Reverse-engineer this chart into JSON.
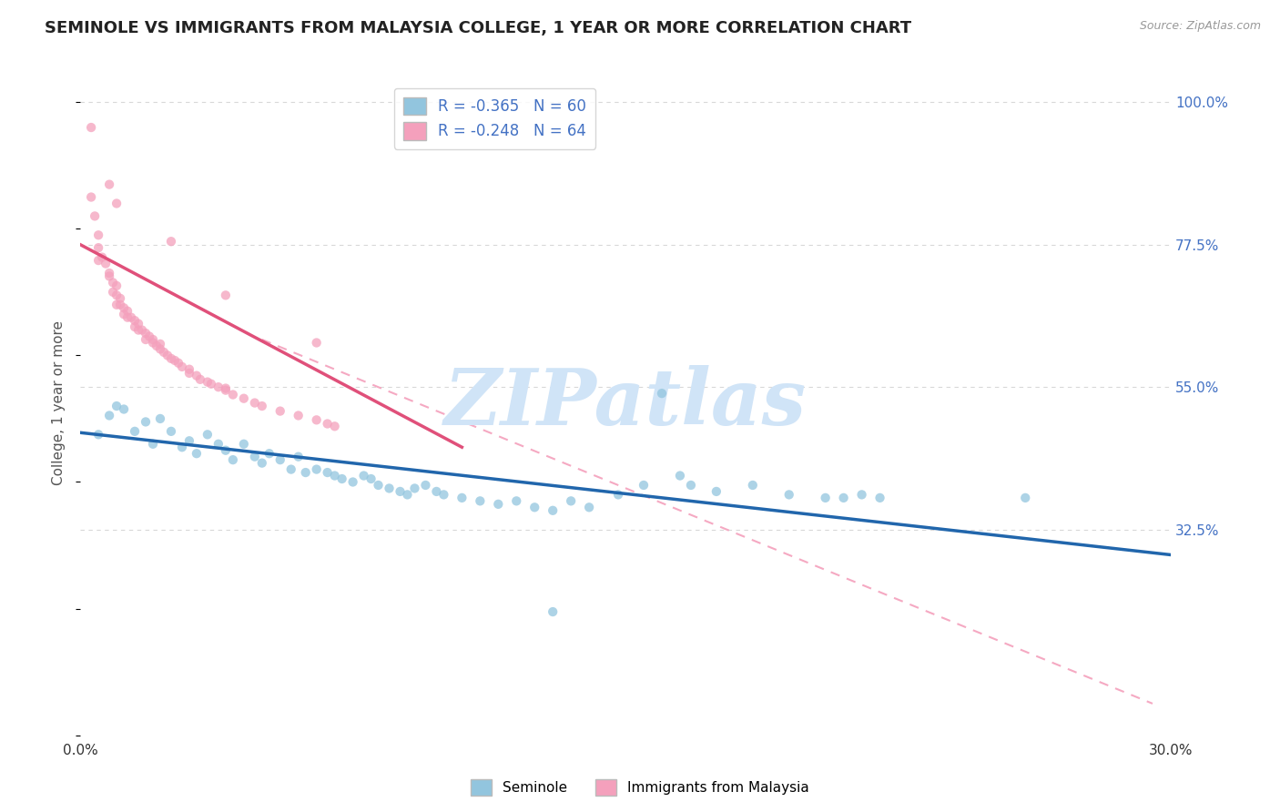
{
  "title": "SEMINOLE VS IMMIGRANTS FROM MALAYSIA COLLEGE, 1 YEAR OR MORE CORRELATION CHART",
  "source": "Source: ZipAtlas.com",
  "ylabel": "College, 1 year or more",
  "xlim": [
    0.0,
    0.3
  ],
  "ylim": [
    0.0,
    1.05
  ],
  "ytick_values": [
    0.325,
    0.55,
    0.775,
    1.0
  ],
  "ytick_labels": [
    "32.5%",
    "55.0%",
    "77.5%",
    "100.0%"
  ],
  "xtick_values": [
    0.0,
    0.05,
    0.1,
    0.15,
    0.2,
    0.25,
    0.3
  ],
  "xtick_labels": [
    "0.0%",
    "",
    "",
    "",
    "",
    "",
    "30.0%"
  ],
  "title_fontsize": 13,
  "label_fontsize": 11,
  "tick_fontsize": 11,
  "background_color": "#ffffff",
  "grid_color": "#d8d8d8",
  "watermark_color": "#d0e4f7",
  "blue_color": "#92c5de",
  "pink_color": "#f4a0bc",
  "blue_line_color": "#2166ac",
  "pink_line_color": "#e0507a",
  "dashed_line_color": "#f4a0bc",
  "legend_R1": "R = -0.365",
  "legend_N1": "N = 60",
  "legend_R2": "R = -0.248",
  "legend_N2": "N = 64",
  "blue_scatter": [
    [
      0.005,
      0.475
    ],
    [
      0.008,
      0.505
    ],
    [
      0.01,
      0.52
    ],
    [
      0.012,
      0.515
    ],
    [
      0.015,
      0.48
    ],
    [
      0.018,
      0.495
    ],
    [
      0.02,
      0.46
    ],
    [
      0.022,
      0.5
    ],
    [
      0.025,
      0.48
    ],
    [
      0.028,
      0.455
    ],
    [
      0.03,
      0.465
    ],
    [
      0.032,
      0.445
    ],
    [
      0.035,
      0.475
    ],
    [
      0.038,
      0.46
    ],
    [
      0.04,
      0.45
    ],
    [
      0.042,
      0.435
    ],
    [
      0.045,
      0.46
    ],
    [
      0.048,
      0.44
    ],
    [
      0.05,
      0.43
    ],
    [
      0.052,
      0.445
    ],
    [
      0.055,
      0.435
    ],
    [
      0.058,
      0.42
    ],
    [
      0.06,
      0.44
    ],
    [
      0.062,
      0.415
    ],
    [
      0.065,
      0.42
    ],
    [
      0.068,
      0.415
    ],
    [
      0.07,
      0.41
    ],
    [
      0.072,
      0.405
    ],
    [
      0.075,
      0.4
    ],
    [
      0.078,
      0.41
    ],
    [
      0.08,
      0.405
    ],
    [
      0.082,
      0.395
    ],
    [
      0.085,
      0.39
    ],
    [
      0.088,
      0.385
    ],
    [
      0.09,
      0.38
    ],
    [
      0.092,
      0.39
    ],
    [
      0.095,
      0.395
    ],
    [
      0.098,
      0.385
    ],
    [
      0.1,
      0.38
    ],
    [
      0.105,
      0.375
    ],
    [
      0.11,
      0.37
    ],
    [
      0.115,
      0.365
    ],
    [
      0.12,
      0.37
    ],
    [
      0.125,
      0.36
    ],
    [
      0.13,
      0.355
    ],
    [
      0.135,
      0.37
    ],
    [
      0.14,
      0.36
    ],
    [
      0.148,
      0.38
    ],
    [
      0.155,
      0.395
    ],
    [
      0.16,
      0.54
    ],
    [
      0.165,
      0.41
    ],
    [
      0.168,
      0.395
    ],
    [
      0.175,
      0.385
    ],
    [
      0.185,
      0.395
    ],
    [
      0.195,
      0.38
    ],
    [
      0.205,
      0.375
    ],
    [
      0.21,
      0.375
    ],
    [
      0.215,
      0.38
    ],
    [
      0.22,
      0.375
    ],
    [
      0.26,
      0.375
    ]
  ],
  "blue_outlier": [
    0.13,
    0.195
  ],
  "pink_scatter": [
    [
      0.003,
      0.96
    ],
    [
      0.003,
      0.85
    ],
    [
      0.004,
      0.82
    ],
    [
      0.005,
      0.79
    ],
    [
      0.005,
      0.77
    ],
    [
      0.005,
      0.75
    ],
    [
      0.006,
      0.755
    ],
    [
      0.007,
      0.745
    ],
    [
      0.008,
      0.73
    ],
    [
      0.008,
      0.725
    ],
    [
      0.009,
      0.715
    ],
    [
      0.009,
      0.7
    ],
    [
      0.01,
      0.71
    ],
    [
      0.01,
      0.695
    ],
    [
      0.01,
      0.68
    ],
    [
      0.011,
      0.69
    ],
    [
      0.011,
      0.68
    ],
    [
      0.012,
      0.675
    ],
    [
      0.012,
      0.665
    ],
    [
      0.013,
      0.67
    ],
    [
      0.013,
      0.66
    ],
    [
      0.014,
      0.66
    ],
    [
      0.015,
      0.655
    ],
    [
      0.015,
      0.645
    ],
    [
      0.016,
      0.65
    ],
    [
      0.016,
      0.64
    ],
    [
      0.017,
      0.64
    ],
    [
      0.018,
      0.635
    ],
    [
      0.018,
      0.625
    ],
    [
      0.019,
      0.63
    ],
    [
      0.02,
      0.62
    ],
    [
      0.02,
      0.625
    ],
    [
      0.021,
      0.615
    ],
    [
      0.022,
      0.61
    ],
    [
      0.022,
      0.618
    ],
    [
      0.023,
      0.605
    ],
    [
      0.024,
      0.6
    ],
    [
      0.025,
      0.595
    ],
    [
      0.026,
      0.592
    ],
    [
      0.027,
      0.588
    ],
    [
      0.028,
      0.582
    ],
    [
      0.03,
      0.578
    ],
    [
      0.03,
      0.572
    ],
    [
      0.032,
      0.568
    ],
    [
      0.033,
      0.562
    ],
    [
      0.035,
      0.558
    ],
    [
      0.036,
      0.555
    ],
    [
      0.038,
      0.55
    ],
    [
      0.04,
      0.545
    ],
    [
      0.04,
      0.548
    ],
    [
      0.042,
      0.538
    ],
    [
      0.045,
      0.532
    ],
    [
      0.048,
      0.525
    ],
    [
      0.05,
      0.52
    ],
    [
      0.055,
      0.512
    ],
    [
      0.06,
      0.505
    ],
    [
      0.065,
      0.498
    ],
    [
      0.068,
      0.492
    ],
    [
      0.07,
      0.488
    ],
    [
      0.065,
      0.62
    ],
    [
      0.04,
      0.695
    ],
    [
      0.025,
      0.78
    ],
    [
      0.01,
      0.84
    ],
    [
      0.008,
      0.87
    ]
  ],
  "blue_line_x": [
    0.0,
    0.3
  ],
  "blue_line_y": [
    0.478,
    0.285
  ],
  "pink_line_x": [
    0.0,
    0.105
  ],
  "pink_line_y": [
    0.775,
    0.455
  ],
  "dashed_line_x": [
    0.05,
    0.295
  ],
  "dashed_line_y": [
    0.625,
    0.05
  ]
}
